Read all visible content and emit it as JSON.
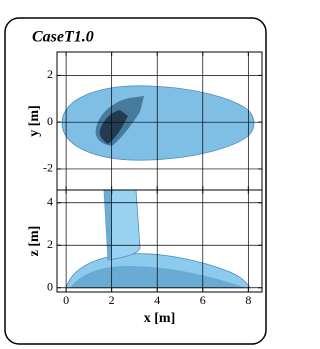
{
  "chart_data": [
    {
      "type": "render",
      "title": "CaseT1.0",
      "ylabel": "y [m]",
      "xlim": [
        -0.4,
        8.6
      ],
      "ylim": [
        -2.9,
        3
      ],
      "xticks": [
        0,
        2,
        4,
        6,
        8
      ],
      "yticks": [
        -2,
        0,
        2
      ],
      "xticklabels": false,
      "grid": true
    },
    {
      "type": "render",
      "xlabel": "x [m]",
      "ylabel": "z [m]",
      "xlim": [
        -0.4,
        8.6
      ],
      "ylim": [
        -0.2,
        4.6
      ],
      "xticks": [
        0,
        2,
        4,
        6,
        8
      ],
      "yticks": [
        0,
        2,
        4
      ],
      "xticklabels": true,
      "grid": true
    }
  ]
}
